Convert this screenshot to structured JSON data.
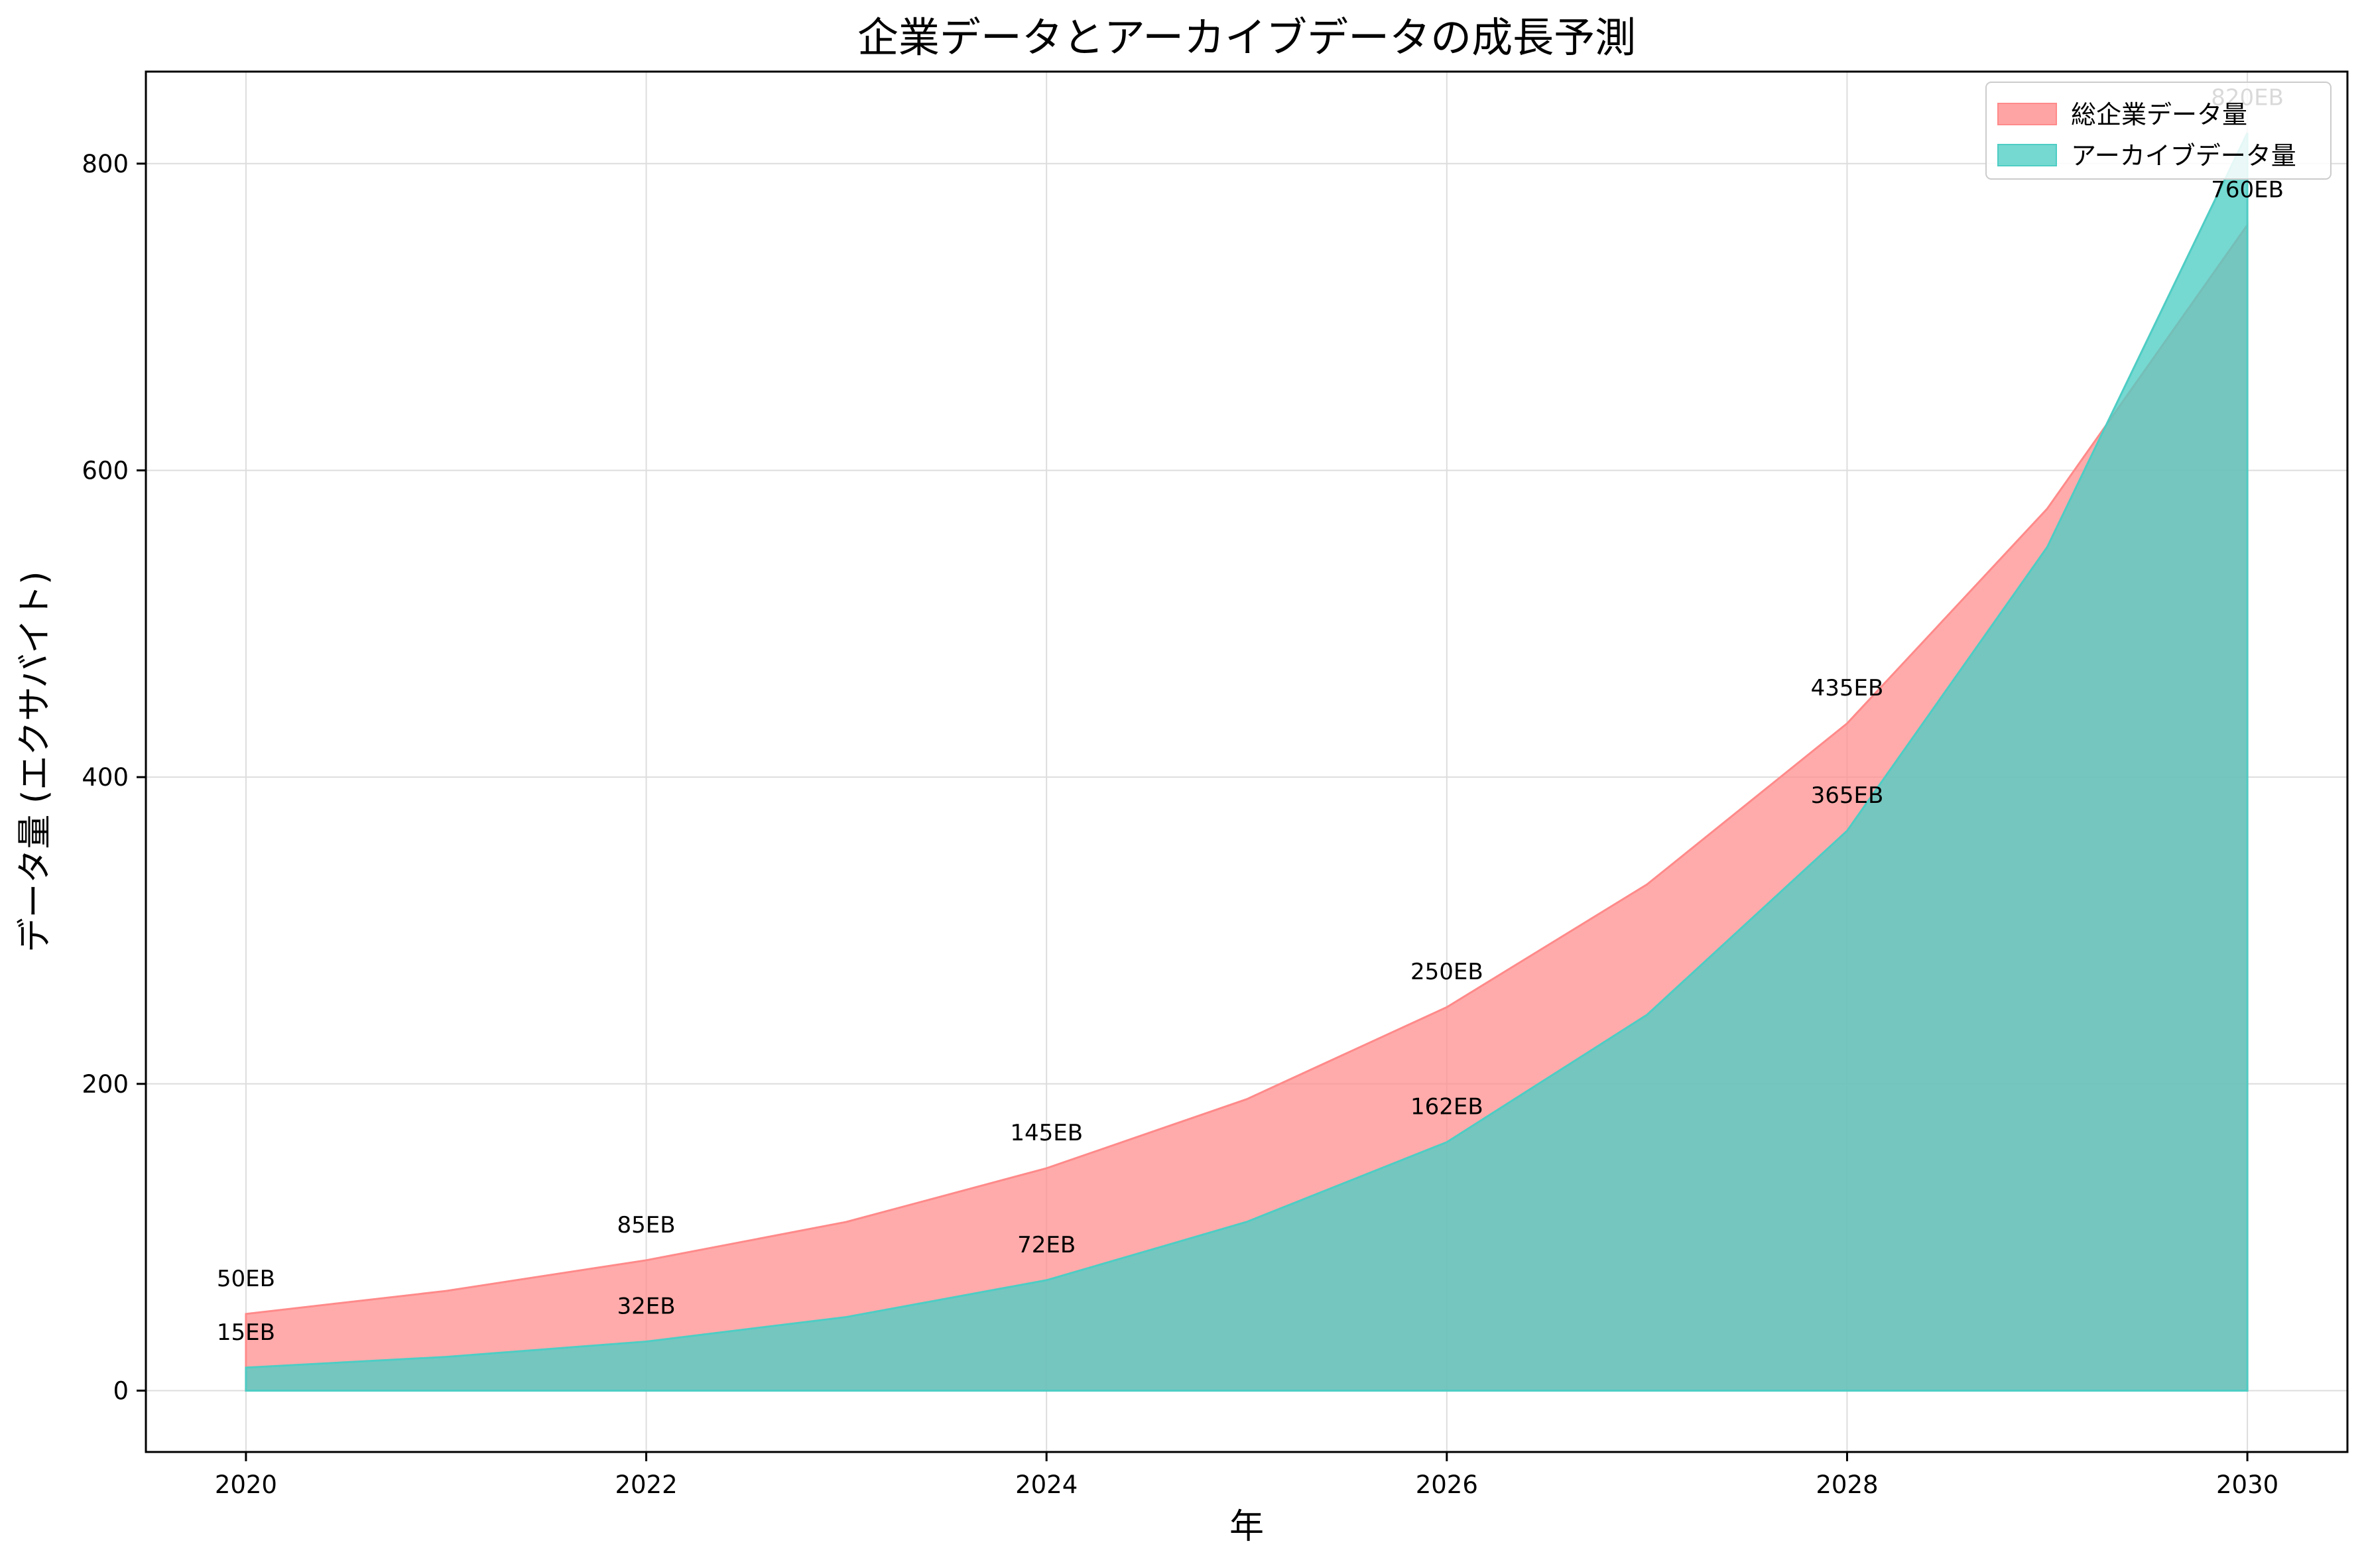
{
  "chart_data": {
    "type": "area",
    "title": "企業データとアーカイブデータの成長予測",
    "xlabel": "年",
    "ylabel": "データ量 (エクサバイト)",
    "x": [
      2020,
      2021,
      2022,
      2023,
      2024,
      2025,
      2026,
      2027,
      2028,
      2029,
      2030
    ],
    "xlim": [
      2019.5,
      2030.5
    ],
    "ylim": [
      -40,
      860
    ],
    "xticks": [
      "2020",
      "2022",
      "2024",
      "2026",
      "2028",
      "2030"
    ],
    "yticks": [
      "0",
      "200",
      "400",
      "600",
      "800"
    ],
    "grid": true,
    "legend_position": "top-right",
    "series": [
      {
        "name": "総企業データ量",
        "color": "#ff8a8a",
        "values": [
          50,
          65,
          85,
          110,
          145,
          190,
          250,
          330,
          435,
          575,
          760
        ]
      },
      {
        "name": "アーカイブデータ量",
        "color": "#4ecdc4",
        "values": [
          15,
          22,
          32,
          48,
          72,
          110,
          162,
          245,
          365,
          550,
          820
        ]
      }
    ],
    "annotations": [
      {
        "x": 2020,
        "y": 50,
        "text": "50EB",
        "series": 0
      },
      {
        "x": 2022,
        "y": 85,
        "text": "85EB",
        "series": 0
      },
      {
        "x": 2024,
        "y": 145,
        "text": "145EB",
        "series": 0
      },
      {
        "x": 2026,
        "y": 250,
        "text": "250EB",
        "series": 0
      },
      {
        "x": 2028,
        "y": 435,
        "text": "435EB",
        "series": 0
      },
      {
        "x": 2030,
        "y": 760,
        "text": "760EB",
        "series": 0
      },
      {
        "x": 2020,
        "y": 15,
        "text": "15EB",
        "series": 1
      },
      {
        "x": 2022,
        "y": 32,
        "text": "32EB",
        "series": 1
      },
      {
        "x": 2024,
        "y": 72,
        "text": "72EB",
        "series": 1
      },
      {
        "x": 2026,
        "y": 162,
        "text": "162EB",
        "series": 1
      },
      {
        "x": 2028,
        "y": 365,
        "text": "365EB",
        "series": 1
      },
      {
        "x": 2030,
        "y": 820,
        "text": "820EB",
        "series": 1
      }
    ]
  }
}
